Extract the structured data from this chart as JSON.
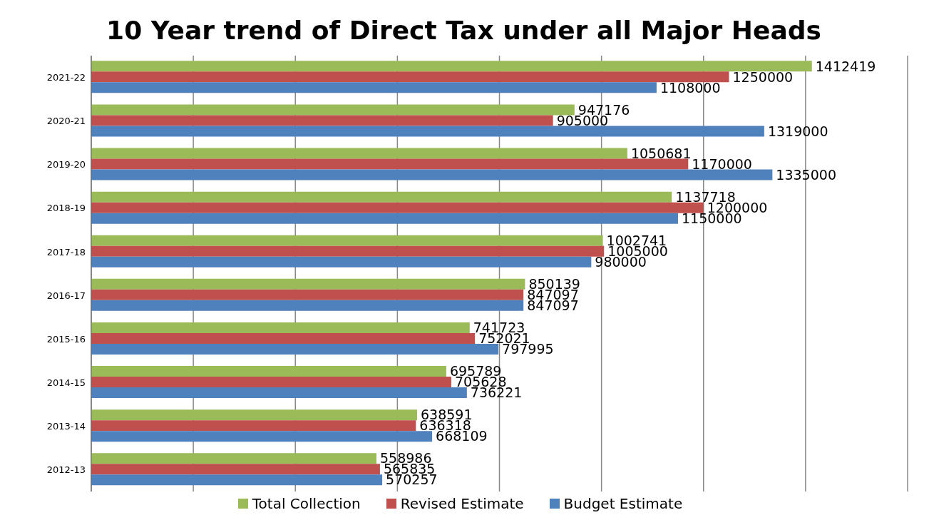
{
  "chart_data": {
    "type": "bar",
    "orientation": "horizontal",
    "title": "10 Year trend of Direct Tax under all Major Heads",
    "categories": [
      "2021-22",
      "2020-21",
      "2019-20",
      "2018-19",
      "2017-18",
      "2016-17",
      "2015-16",
      "2014-15",
      "2013-14",
      "2012-13"
    ],
    "series": [
      {
        "name": "Total Collection",
        "color": "#9bbb59",
        "values": [
          1412419,
          947176,
          1050681,
          1137718,
          1002741,
          850139,
          741723,
          695789,
          638591,
          558986
        ]
      },
      {
        "name": "Revised Estimate",
        "color": "#c0504d",
        "values": [
          1250000,
          905000,
          1170000,
          1200000,
          1005000,
          847097,
          752021,
          705628,
          636318,
          565835
        ]
      },
      {
        "name": "Budget Estimate",
        "color": "#4f81bd",
        "values": [
          1108000,
          1319000,
          1335000,
          1150000,
          980000,
          847097,
          797995,
          736221,
          668109,
          570257
        ]
      }
    ],
    "tick_labels": "y",
    "grid": "x",
    "legend": "bottom",
    "data_labels": true
  }
}
